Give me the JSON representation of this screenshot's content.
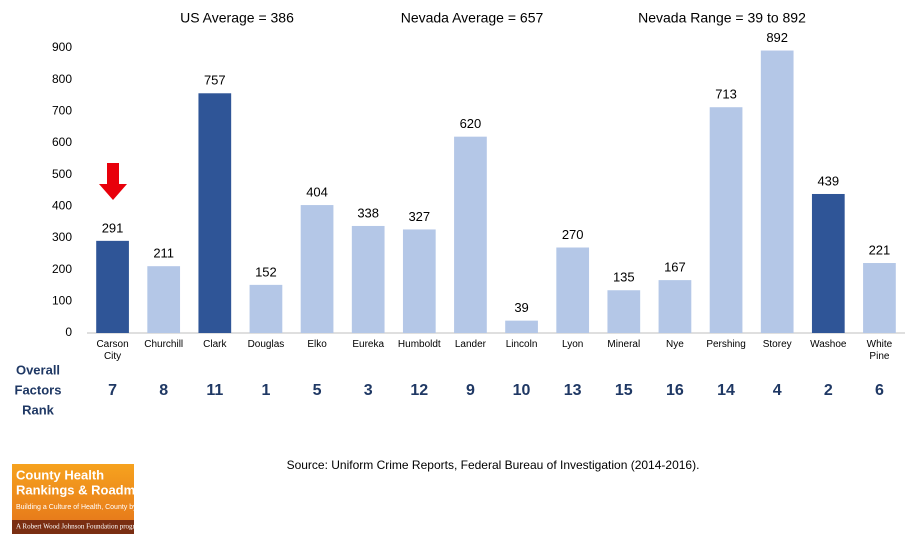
{
  "chart_data": {
    "type": "bar",
    "annotations": [
      "US Average = 386",
      "Nevada Average = 657",
      "Nevada Range = 39 to 892"
    ],
    "categories": [
      "Carson City",
      "Churchill",
      "Clark",
      "Douglas",
      "Elko",
      "Eureka",
      "Humboldt",
      "Lander",
      "Lincoln",
      "Lyon",
      "Mineral",
      "Nye",
      "Pershing",
      "Storey",
      "Washoe",
      "White Pine"
    ],
    "values": [
      291,
      211,
      757,
      152,
      404,
      338,
      327,
      620,
      39,
      270,
      135,
      167,
      713,
      892,
      439,
      221
    ],
    "colors": [
      "#2f5597",
      "#b4c7e7",
      "#2f5597",
      "#b4c7e7",
      "#b4c7e7",
      "#b4c7e7",
      "#b4c7e7",
      "#b4c7e7",
      "#b4c7e7",
      "#b4c7e7",
      "#b4c7e7",
      "#b4c7e7",
      "#b4c7e7",
      "#b4c7e7",
      "#2f5597",
      "#b4c7e7"
    ],
    "ylim": [
      0,
      900
    ],
    "yticks": [
      0,
      100,
      200,
      300,
      400,
      500,
      600,
      700,
      800,
      900
    ],
    "grid": false,
    "ranks_label": [
      "Overall",
      "Factors",
      "Rank"
    ],
    "ranks": [
      7,
      8,
      11,
      1,
      5,
      3,
      12,
      9,
      10,
      13,
      15,
      16,
      14,
      4,
      2,
      6
    ],
    "source": "Source: Uniform Crime Reports, Federal Bureau of Investigation (2014-2016)."
  },
  "logo": {
    "title_lines": [
      "County Health",
      "Rankings & Roadmaps"
    ],
    "tagline": "Building a Culture of Health, County by County",
    "program": "A Robert Wood Johnson Foundation program"
  }
}
